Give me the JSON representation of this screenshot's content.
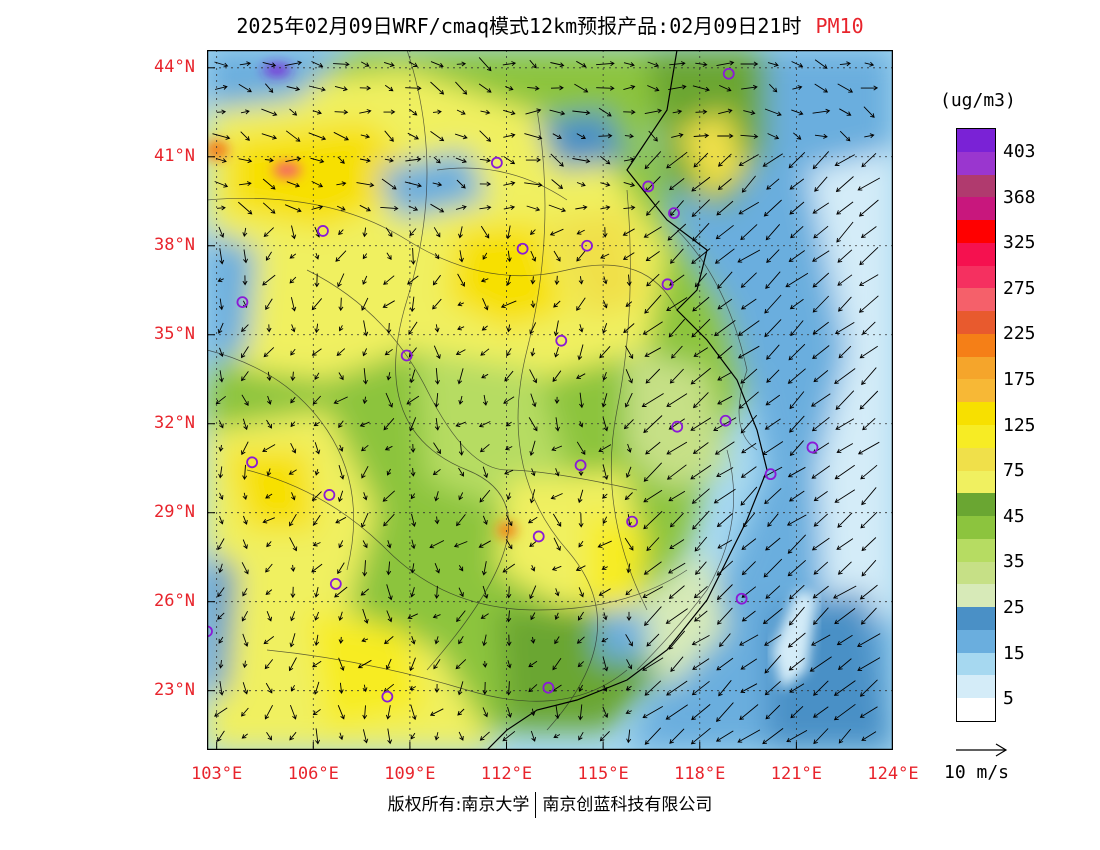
{
  "header": {
    "title": "2025年02月09日WRF/cmaq模式12km预报产品:02月09日21时",
    "variable": "PM10"
  },
  "axes": {
    "lat_labels": [
      "44°N",
      "41°N",
      "38°N",
      "35°N",
      "32°N",
      "29°N",
      "26°N",
      "23°N"
    ],
    "lat_values": [
      44,
      41,
      38,
      35,
      32,
      29,
      26,
      23
    ],
    "lon_labels": [
      "103°E",
      "106°E",
      "109°E",
      "112°E",
      "115°E",
      "118°E",
      "121°E",
      "124°E"
    ],
    "lon_values": [
      103,
      106,
      109,
      112,
      115,
      118,
      121,
      124
    ],
    "lat_range": [
      21.0,
      44.6
    ],
    "lon_range": [
      102.7,
      124.0
    ]
  },
  "legend": {
    "unit": "(ug/m3)",
    "labels": [
      "403",
      "368",
      "325",
      "275",
      "225",
      "175",
      "125",
      "75",
      "45",
      "35",
      "25",
      "15",
      "5"
    ],
    "colors": [
      "#7a22d6",
      "#9a36cf",
      "#b03a6e",
      "#c8177d",
      "#ff0000",
      "#f5114f",
      "#f53060",
      "#f5606a",
      "#e85a2e",
      "#f57f17",
      "#f5a52b",
      "#f7b836",
      "#f7e000",
      "#f7ec24",
      "#f0e04a",
      "#f0f060",
      "#6aa632",
      "#8cc43e",
      "#b6dc62",
      "#c6e086",
      "#d7eab8",
      "#4a90c6",
      "#6aaede",
      "#a6d8f0",
      "#d4ecf8",
      "#ffffff"
    ]
  },
  "wind_scale": {
    "label": "10 m/s"
  },
  "cities": [
    {
      "name": "city",
      "lat": 43.8,
      "lon": 118.9
    },
    {
      "name": "city",
      "lat": 40.8,
      "lon": 111.7
    },
    {
      "name": "city",
      "lat": 40.0,
      "lon": 116.4
    },
    {
      "name": "city",
      "lat": 39.1,
      "lon": 117.2
    },
    {
      "name": "city",
      "lat": 38.5,
      "lon": 106.3
    },
    {
      "name": "city",
      "lat": 37.9,
      "lon": 112.5
    },
    {
      "name": "city",
      "lat": 38.0,
      "lon": 114.5
    },
    {
      "name": "city",
      "lat": 36.7,
      "lon": 117.0
    },
    {
      "name": "city",
      "lat": 36.1,
      "lon": 103.8
    },
    {
      "name": "city",
      "lat": 34.8,
      "lon": 113.7
    },
    {
      "name": "city",
      "lat": 34.3,
      "lon": 108.9
    },
    {
      "name": "city",
      "lat": 32.1,
      "lon": 118.8
    },
    {
      "name": "city",
      "lat": 31.9,
      "lon": 117.3
    },
    {
      "name": "city",
      "lat": 31.2,
      "lon": 121.5
    },
    {
      "name": "city",
      "lat": 30.3,
      "lon": 120.2
    },
    {
      "name": "city",
      "lat": 30.6,
      "lon": 114.3
    },
    {
      "name": "city",
      "lat": 30.7,
      "lon": 104.1
    },
    {
      "name": "city",
      "lat": 29.6,
      "lon": 106.5
    },
    {
      "name": "city",
      "lat": 28.7,
      "lon": 115.9
    },
    {
      "name": "city",
      "lat": 28.2,
      "lon": 113.0
    },
    {
      "name": "city",
      "lat": 26.6,
      "lon": 106.7
    },
    {
      "name": "city",
      "lat": 26.1,
      "lon": 119.3
    },
    {
      "name": "city",
      "lat": 25.0,
      "lon": 102.7
    },
    {
      "name": "city",
      "lat": 22.8,
      "lon": 108.3
    },
    {
      "name": "city",
      "lat": 23.1,
      "lon": 113.3
    }
  ],
  "footer": {
    "left": "版权所有:南京大学",
    "right": "南京创蓝科技有限公司"
  }
}
